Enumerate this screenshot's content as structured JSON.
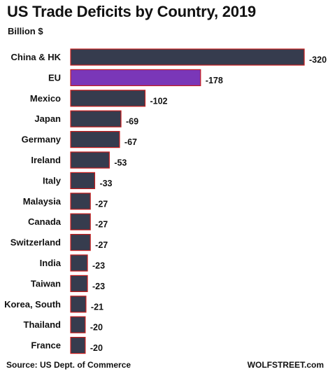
{
  "chart_data": {
    "type": "bar",
    "orientation": "horizontal",
    "title": "US Trade Deficits by Country, 2019",
    "subtitle": "Billion $",
    "categories": [
      "China & HK",
      "EU",
      "Mexico",
      "Japan",
      "Germany",
      "Ireland",
      "Italy",
      "Malaysia",
      "Canada",
      "Switzerland",
      "India",
      "Taiwan",
      "Korea, South",
      "Thailand",
      "France"
    ],
    "values": [
      -320,
      -178,
      -102,
      -69,
      -67,
      -53,
      -33,
      -27,
      -27,
      -27,
      -23,
      -23,
      -21,
      -20,
      -20
    ],
    "value_labels": [
      "-320",
      "-178",
      "-102",
      "-69",
      "-67",
      "-53",
      "-33",
      "-27",
      "-27",
      "-27",
      "-23",
      "-23",
      "-21",
      "-20",
      "-20"
    ],
    "highlight_category": "EU",
    "grid": false,
    "legend": "none",
    "colors": {
      "bar": "#363c4e",
      "highlight": "#7a37b8",
      "bar_border": "#c81e1e"
    }
  },
  "footer": {
    "source": "Source: US Dept. of Commerce",
    "brand": "WOLFSTREET.com"
  }
}
